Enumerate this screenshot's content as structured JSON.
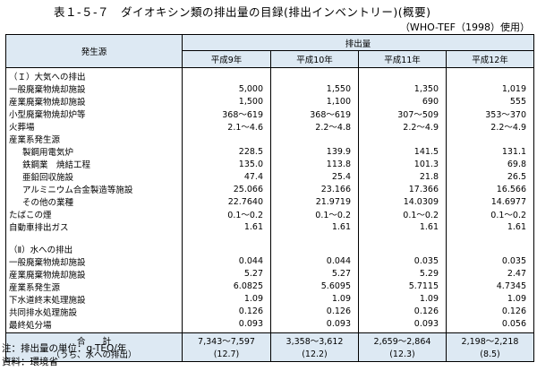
{
  "title": "表１-５-７　ダイオキシン類の排出量の目録(排出インベントリー)(概要)",
  "subtitle": "（WHO-TEF（1998）使用）",
  "header": {
    "source_col": "発生源",
    "emission_col": "排出量",
    "years": [
      "平成9年",
      "平成10年",
      "平成11年",
      "平成12年"
    ]
  },
  "rows": [
    {
      "label": "（Ｉ）大気への排出",
      "indent": false,
      "values": [
        "",
        "",
        "",
        ""
      ]
    },
    {
      "label": "一般廃棄物焼却施設",
      "indent": false,
      "values": [
        "5,000",
        "1,550",
        "1,350",
        "1,019"
      ]
    },
    {
      "label": "産業廃棄物焼却施設",
      "indent": false,
      "values": [
        "1,500",
        "1,100",
        "690",
        "555"
      ]
    },
    {
      "label": "小型廃棄物焼却炉等",
      "indent": false,
      "values": [
        "368～619",
        "368～619",
        "307～509",
        "353～370"
      ]
    },
    {
      "label": "火葬場",
      "indent": false,
      "values": [
        "2.1～4.6",
        "2.2～4.8",
        "2.2～4.9",
        "2.2～4.9"
      ]
    },
    {
      "label": "産業系発生源",
      "indent": false,
      "values": [
        "",
        "",
        "",
        ""
      ]
    },
    {
      "label": "製鋼用電気炉",
      "indent": true,
      "values": [
        "228.5",
        "139.9",
        "141.5",
        "131.1"
      ]
    },
    {
      "label": "鉄鋼業　焼結工程",
      "indent": true,
      "values": [
        "135.0",
        "113.8",
        "101.3",
        "69.8"
      ]
    },
    {
      "label": "亜鉛回収施設",
      "indent": true,
      "values": [
        "47.4",
        "25.4",
        "21.8",
        "26.5"
      ]
    },
    {
      "label": "アルミニウム合金製造等施設",
      "indent": true,
      "values": [
        "25.066",
        "23.166",
        "17.366",
        "16.566"
      ]
    },
    {
      "label": "その他の業種",
      "indent": true,
      "values": [
        "22.7640",
        "21.9719",
        "14.0309",
        "14.6977"
      ]
    },
    {
      "label": "たばこの煙",
      "indent": false,
      "values": [
        "0.1～0.2",
        "0.1～0.2",
        "0.1～0.2",
        "0.1～0.2"
      ]
    },
    {
      "label": "自動車排出ガス",
      "indent": false,
      "values": [
        "1.61",
        "1.61",
        "1.61",
        "1.61"
      ]
    },
    {
      "label": "",
      "indent": false,
      "values": [
        "",
        "",
        "",
        ""
      ]
    },
    {
      "label": "（Ⅱ）水への排出",
      "indent": false,
      "values": [
        "",
        "",
        "",
        ""
      ]
    },
    {
      "label": "一般廃棄物焼却施設",
      "indent": false,
      "values": [
        "0.044",
        "0.044",
        "0.035",
        "0.035"
      ]
    },
    {
      "label": "産業廃棄物焼却施設",
      "indent": false,
      "values": [
        "5.27",
        "5.27",
        "5.29",
        "2.47"
      ]
    },
    {
      "label": "産業系発生源",
      "indent": false,
      "values": [
        "6.0825",
        "5.6095",
        "5.7115",
        "4.7345"
      ]
    },
    {
      "label": "下水道終末処理施設",
      "indent": false,
      "values": [
        "1.09",
        "1.09",
        "1.09",
        "1.09"
      ]
    },
    {
      "label": "共同排水処理施設",
      "indent": false,
      "values": [
        "0.126",
        "0.126",
        "0.126",
        "0.126"
      ]
    },
    {
      "label": "最終処分場",
      "indent": false,
      "values": [
        "0.093",
        "0.093",
        "0.093",
        "0.056"
      ]
    }
  ],
  "total": {
    "label": "合　　計",
    "sublabel": "（うち、水への排出）",
    "values": [
      "7,343～7,597",
      "3,358～3,612",
      "2,659～2,864",
      "2,198～2,218"
    ],
    "water": [
      "(12.7)",
      "(12.2)",
      "(12.3)",
      "(8.5)"
    ]
  },
  "footnotes": [
    "注：排出量の単位：g-TEQ/年",
    "資料：環境省"
  ]
}
